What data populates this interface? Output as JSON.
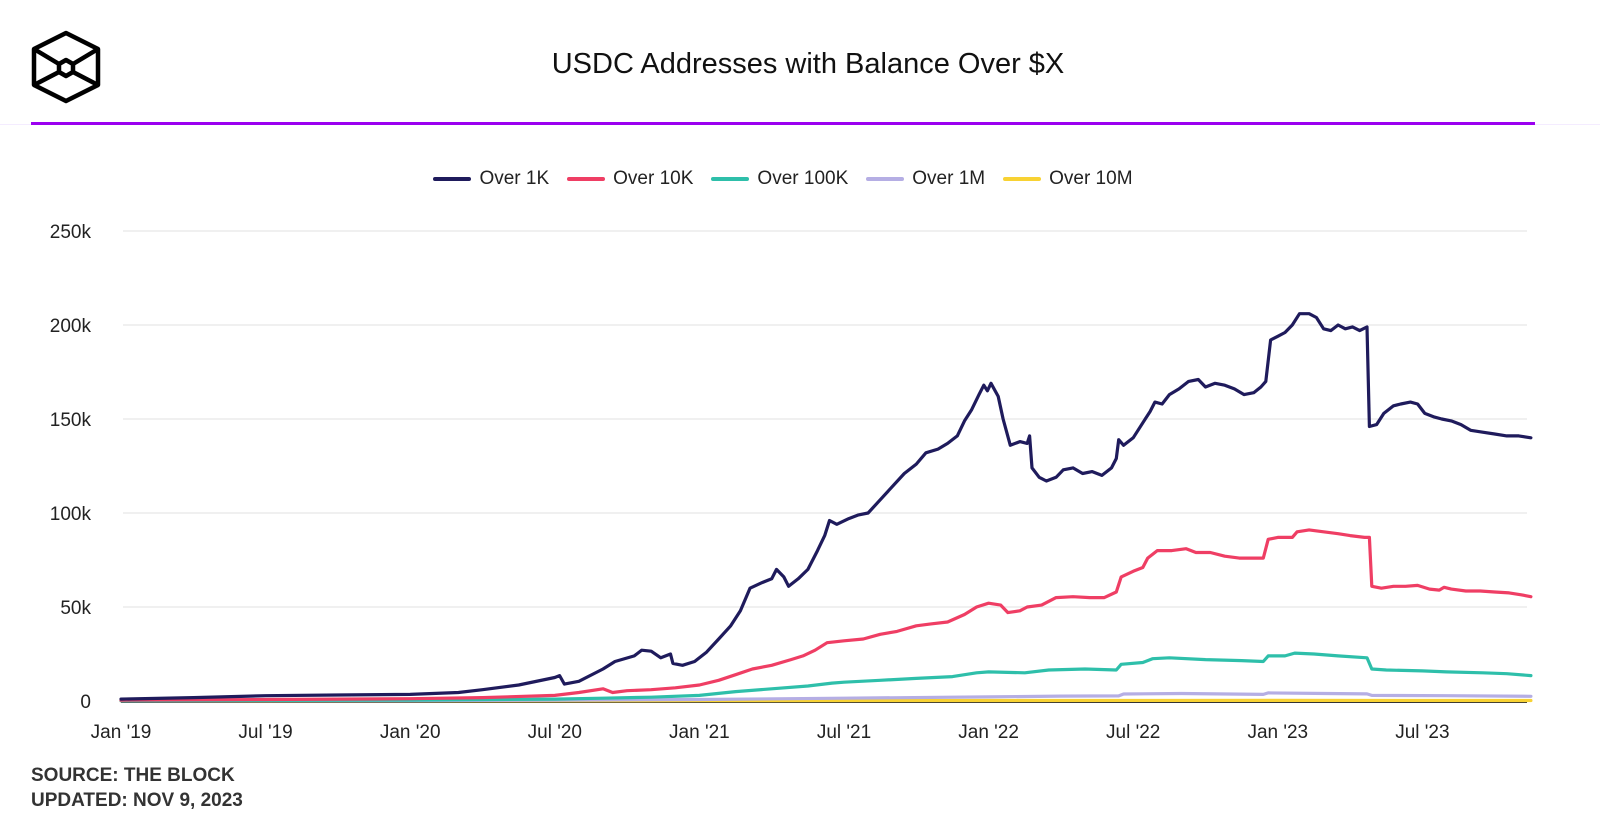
{
  "header": {
    "logo_icon": "the-block-cube-logo-icon",
    "title": "USDC Addresses with Balance Over $X",
    "accent_color": "#9b00f0"
  },
  "footer": {
    "source": "SOURCE: THE BLOCK",
    "updated": "UPDATED: NOV 9, 2023"
  },
  "chart_data": {
    "type": "line",
    "title": "USDC Addresses with Balance Over $X",
    "xlabel": "",
    "ylabel": "",
    "ylim": [
      0,
      250000
    ],
    "xlim": [
      "2019-01",
      "2023-11"
    ],
    "grid": true,
    "legend_position": "top-center",
    "y_ticks": [
      {
        "value": 0,
        "label": "0"
      },
      {
        "value": 50000,
        "label": "50k"
      },
      {
        "value": 100000,
        "label": "100k"
      },
      {
        "value": 150000,
        "label": "150k"
      },
      {
        "value": 200000,
        "label": "200k"
      },
      {
        "value": 250000,
        "label": "250k"
      }
    ],
    "x_ticks": [
      {
        "value": 0,
        "label": "Jan '19"
      },
      {
        "value": 6,
        "label": "Jul '19"
      },
      {
        "value": 12,
        "label": "Jan '20"
      },
      {
        "value": 18,
        "label": "Jul '20"
      },
      {
        "value": 24,
        "label": "Jan '21"
      },
      {
        "value": 30,
        "label": "Jul '21"
      },
      {
        "value": 36,
        "label": "Jan '22"
      },
      {
        "value": 42,
        "label": "Jul '22"
      },
      {
        "value": 48,
        "label": "Jan '23"
      },
      {
        "value": 54,
        "label": "Jul '23"
      }
    ],
    "x_unit": "months since Jan 2019",
    "series": [
      {
        "name": "Over 1K",
        "color": "#1f1b5c",
        "points": [
          [
            0,
            1000
          ],
          [
            3,
            1800
          ],
          [
            6,
            2800
          ],
          [
            9,
            3200
          ],
          [
            12,
            3500
          ],
          [
            14,
            4500
          ],
          [
            15,
            6000
          ],
          [
            16.5,
            8500
          ],
          [
            18,
            12500
          ],
          [
            18.2,
            13500
          ],
          [
            18.4,
            9000
          ],
          [
            19,
            10500
          ],
          [
            20,
            17000
          ],
          [
            20.5,
            21000
          ],
          [
            21.3,
            24000
          ],
          [
            21.6,
            27000
          ],
          [
            22,
            26500
          ],
          [
            22.4,
            23000
          ],
          [
            22.8,
            25000
          ],
          [
            22.9,
            20000
          ],
          [
            23.3,
            19000
          ],
          [
            23.8,
            21000
          ],
          [
            24.3,
            26000
          ],
          [
            24.8,
            33000
          ],
          [
            25.3,
            40000
          ],
          [
            25.7,
            48000
          ],
          [
            26.1,
            60000
          ],
          [
            26.6,
            63000
          ],
          [
            27,
            65000
          ],
          [
            27.2,
            70000
          ],
          [
            27.5,
            66000
          ],
          [
            27.7,
            61000
          ],
          [
            28.1,
            65000
          ],
          [
            28.5,
            70000
          ],
          [
            28.9,
            80000
          ],
          [
            29.2,
            88000
          ],
          [
            29.4,
            96000
          ],
          [
            29.7,
            94000
          ],
          [
            30.2,
            97000
          ],
          [
            30.6,
            99000
          ],
          [
            31,
            100000
          ],
          [
            31.5,
            107000
          ],
          [
            32,
            114000
          ],
          [
            32.5,
            121000
          ],
          [
            33,
            126000
          ],
          [
            33.4,
            132000
          ],
          [
            33.9,
            134000
          ],
          [
            34.3,
            137000
          ],
          [
            34.7,
            141000
          ],
          [
            35,
            149000
          ],
          [
            35.3,
            155000
          ],
          [
            35.6,
            163000
          ],
          [
            35.8,
            168000
          ],
          [
            35.95,
            165000
          ],
          [
            36.1,
            169000
          ],
          [
            36.4,
            162000
          ],
          [
            36.6,
            150000
          ],
          [
            36.9,
            136000
          ],
          [
            37.3,
            138000
          ],
          [
            37.6,
            137000
          ],
          [
            37.7,
            141000
          ],
          [
            37.8,
            124000
          ],
          [
            38.1,
            119000
          ],
          [
            38.4,
            117000
          ],
          [
            38.8,
            119000
          ],
          [
            39.1,
            123000
          ],
          [
            39.5,
            124000
          ],
          [
            39.9,
            121000
          ],
          [
            40.3,
            122000
          ],
          [
            40.7,
            120000
          ],
          [
            41.1,
            124000
          ],
          [
            41.3,
            129000
          ],
          [
            41.4,
            139000
          ],
          [
            41.6,
            136000
          ],
          [
            42,
            140000
          ],
          [
            42.4,
            148000
          ],
          [
            42.7,
            154000
          ],
          [
            42.9,
            159000
          ],
          [
            43.2,
            158000
          ],
          [
            43.5,
            163000
          ],
          [
            43.9,
            166000
          ],
          [
            44.3,
            170000
          ],
          [
            44.7,
            171000
          ],
          [
            45,
            167000
          ],
          [
            45.4,
            169000
          ],
          [
            45.8,
            168000
          ],
          [
            46.2,
            166000
          ],
          [
            46.6,
            163000
          ],
          [
            47,
            164000
          ],
          [
            47.3,
            167000
          ],
          [
            47.5,
            170000
          ],
          [
            47.7,
            192000
          ],
          [
            48,
            194000
          ],
          [
            48.3,
            196000
          ],
          [
            48.6,
            200000
          ],
          [
            48.9,
            206000
          ],
          [
            49.3,
            206000
          ],
          [
            49.6,
            204000
          ],
          [
            49.9,
            198000
          ],
          [
            50.2,
            197000
          ],
          [
            50.5,
            200000
          ],
          [
            50.8,
            198000
          ],
          [
            51.1,
            199000
          ],
          [
            51.4,
            197000
          ],
          [
            51.7,
            199000
          ],
          [
            51.8,
            146000
          ],
          [
            52.1,
            147000
          ],
          [
            52.4,
            153000
          ],
          [
            52.8,
            157000
          ],
          [
            53.1,
            158000
          ],
          [
            53.5,
            159000
          ],
          [
            53.8,
            158000
          ],
          [
            54.1,
            153000
          ],
          [
            54.5,
            151000
          ],
          [
            54.8,
            150000
          ],
          [
            55.2,
            149000
          ],
          [
            55.6,
            147000
          ],
          [
            56,
            144000
          ],
          [
            56.5,
            143000
          ],
          [
            57,
            142000
          ],
          [
            57.5,
            141000
          ],
          [
            58,
            141000
          ],
          [
            58.5,
            140000
          ]
        ]
      },
      {
        "name": "Over 10K",
        "color": "#ef3e64",
        "points": [
          [
            0,
            500
          ],
          [
            6,
            800
          ],
          [
            12,
            1200
          ],
          [
            15,
            1800
          ],
          [
            18,
            3000
          ],
          [
            19,
            4500
          ],
          [
            20,
            6500
          ],
          [
            20.4,
            4500
          ],
          [
            21,
            5500
          ],
          [
            22,
            6000
          ],
          [
            23,
            7000
          ],
          [
            24,
            8500
          ],
          [
            24.8,
            11000
          ],
          [
            25.5,
            14000
          ],
          [
            26.2,
            17000
          ],
          [
            27,
            19000
          ],
          [
            27.8,
            22000
          ],
          [
            28.3,
            24000
          ],
          [
            28.8,
            27000
          ],
          [
            29.3,
            31000
          ],
          [
            30,
            32000
          ],
          [
            30.8,
            33000
          ],
          [
            31.5,
            35500
          ],
          [
            32.2,
            37000
          ],
          [
            33,
            40000
          ],
          [
            33.6,
            41000
          ],
          [
            34.3,
            42000
          ],
          [
            35,
            46000
          ],
          [
            35.5,
            50000
          ],
          [
            36,
            52000
          ],
          [
            36.5,
            51000
          ],
          [
            36.8,
            47000
          ],
          [
            37.3,
            48000
          ],
          [
            37.6,
            50000
          ],
          [
            38.2,
            51000
          ],
          [
            38.8,
            55000
          ],
          [
            39.5,
            55500
          ],
          [
            40.2,
            55000
          ],
          [
            40.8,
            55000
          ],
          [
            41.3,
            58000
          ],
          [
            41.5,
            66000
          ],
          [
            42,
            69000
          ],
          [
            42.4,
            71000
          ],
          [
            42.6,
            76000
          ],
          [
            43,
            80000
          ],
          [
            43.6,
            80000
          ],
          [
            44.2,
            81000
          ],
          [
            44.6,
            79000
          ],
          [
            45.2,
            79000
          ],
          [
            45.8,
            77000
          ],
          [
            46.4,
            76000
          ],
          [
            47,
            76000
          ],
          [
            47.4,
            76000
          ],
          [
            47.6,
            86000
          ],
          [
            48,
            87000
          ],
          [
            48.6,
            87000
          ],
          [
            48.8,
            90000
          ],
          [
            49.3,
            91000
          ],
          [
            49.9,
            90000
          ],
          [
            50.5,
            89000
          ],
          [
            51,
            88000
          ],
          [
            51.6,
            87000
          ],
          [
            51.8,
            87000
          ],
          [
            51.9,
            61000
          ],
          [
            52.3,
            60000
          ],
          [
            52.8,
            61000
          ],
          [
            53.3,
            61000
          ],
          [
            53.8,
            61500
          ],
          [
            54.3,
            59500
          ],
          [
            54.7,
            59000
          ],
          [
            54.9,
            60500
          ],
          [
            55.2,
            59500
          ],
          [
            55.8,
            58500
          ],
          [
            56.4,
            58500
          ],
          [
            57,
            58000
          ],
          [
            57.6,
            57500
          ],
          [
            58.1,
            56500
          ],
          [
            58.5,
            55500
          ]
        ]
      },
      {
        "name": "Over 100K",
        "color": "#2ebfaa",
        "points": [
          [
            0,
            200
          ],
          [
            12,
            500
          ],
          [
            18,
            1000
          ],
          [
            20,
            1500
          ],
          [
            22,
            2000
          ],
          [
            24,
            3000
          ],
          [
            25.5,
            5000
          ],
          [
            27,
            6500
          ],
          [
            28.5,
            8000
          ],
          [
            29.5,
            9500
          ],
          [
            30,
            10000
          ],
          [
            31.5,
            11000
          ],
          [
            33,
            12000
          ],
          [
            34.5,
            13000
          ],
          [
            35.5,
            15000
          ],
          [
            36,
            15500
          ],
          [
            37.5,
            15000
          ],
          [
            38.5,
            16500
          ],
          [
            40,
            17000
          ],
          [
            41.3,
            16500
          ],
          [
            41.5,
            19500
          ],
          [
            42.4,
            20500
          ],
          [
            42.8,
            22500
          ],
          [
            43.5,
            23000
          ],
          [
            45,
            22000
          ],
          [
            46.5,
            21500
          ],
          [
            47.4,
            21000
          ],
          [
            47.6,
            24000
          ],
          [
            48.3,
            24000
          ],
          [
            48.7,
            25500
          ],
          [
            49.5,
            25000
          ],
          [
            50.5,
            24000
          ],
          [
            51.7,
            23000
          ],
          [
            51.9,
            17000
          ],
          [
            52.5,
            16500
          ],
          [
            54,
            16000
          ],
          [
            55,
            15500
          ],
          [
            56.5,
            15000
          ],
          [
            57.5,
            14500
          ],
          [
            58.5,
            13500
          ]
        ]
      },
      {
        "name": "Over 1M",
        "color": "#b5aee4",
        "points": [
          [
            0,
            100
          ],
          [
            12,
            200
          ],
          [
            18,
            400
          ],
          [
            24,
            800
          ],
          [
            30,
            1500
          ],
          [
            36,
            2200
          ],
          [
            39,
            2600
          ],
          [
            41.4,
            2700
          ],
          [
            41.6,
            3700
          ],
          [
            44,
            4000
          ],
          [
            47.4,
            3500
          ],
          [
            47.6,
            4300
          ],
          [
            50,
            4000
          ],
          [
            51.7,
            3800
          ],
          [
            51.9,
            3000
          ],
          [
            55,
            2800
          ],
          [
            58.5,
            2500
          ]
        ]
      },
      {
        "name": "Over 10M",
        "color": "#f8d233",
        "points": [
          [
            0,
            50
          ],
          [
            12,
            80
          ],
          [
            24,
            150
          ],
          [
            36,
            250
          ],
          [
            48,
            300
          ],
          [
            58.5,
            250
          ]
        ]
      }
    ]
  }
}
